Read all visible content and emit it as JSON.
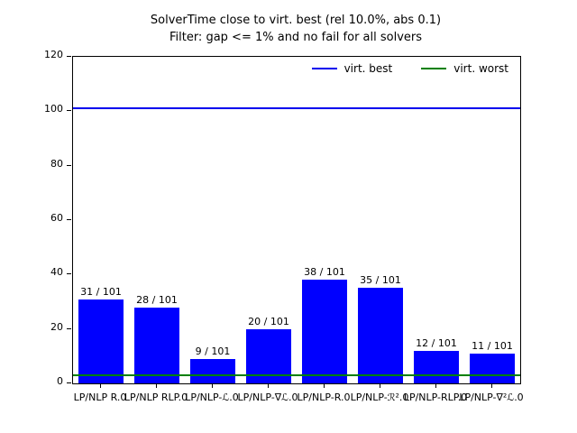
{
  "title": {
    "line1": "SolverTime close to virt. best (rel 10.0%, abs 0.1)",
    "line2": "Filter: gap <= 1% and no fail for all solvers"
  },
  "legend": {
    "entries": [
      {
        "label": "virt. best",
        "color": "#0000ee"
      },
      {
        "label": "virt. worst",
        "color": "#008000"
      }
    ]
  },
  "chart_data": {
    "type": "bar",
    "title": "SolverTime close to virt. best (rel 10.0%, abs 0.1)\nFilter: gap <= 1% and no fail for all solvers",
    "categories": [
      "LP/NLP R.0",
      "LP/NLP RLP.0",
      "LP/NLP-ℒ.0",
      "LP/NLP-∇ℒ.0",
      "LP/NLP-R.0",
      "LP/NLP-ℛ².0",
      "LP/NLP-RLP.0",
      "LP/NLP-∇²ℒ.0"
    ],
    "values": [
      31,
      28,
      9,
      20,
      38,
      35,
      12,
      11
    ],
    "bar_labels": [
      "31 / 101",
      "28 / 101",
      "9 / 101",
      "20 / 101",
      "38 / 101",
      "35 / 101",
      "12 / 101",
      "11 / 101"
    ],
    "total": 101,
    "bar_color": "#0000ff",
    "hlines": [
      {
        "name": "virt. best",
        "y": 101,
        "color": "#0000ee"
      },
      {
        "name": "virt. worst",
        "y": 3,
        "color": "#008000"
      }
    ],
    "ylim": [
      0,
      120
    ],
    "yticks": [
      0,
      20,
      40,
      60,
      80,
      100,
      120
    ],
    "xlabel": "",
    "ylabel": "",
    "grid": false,
    "legend_position": "upper right"
  }
}
